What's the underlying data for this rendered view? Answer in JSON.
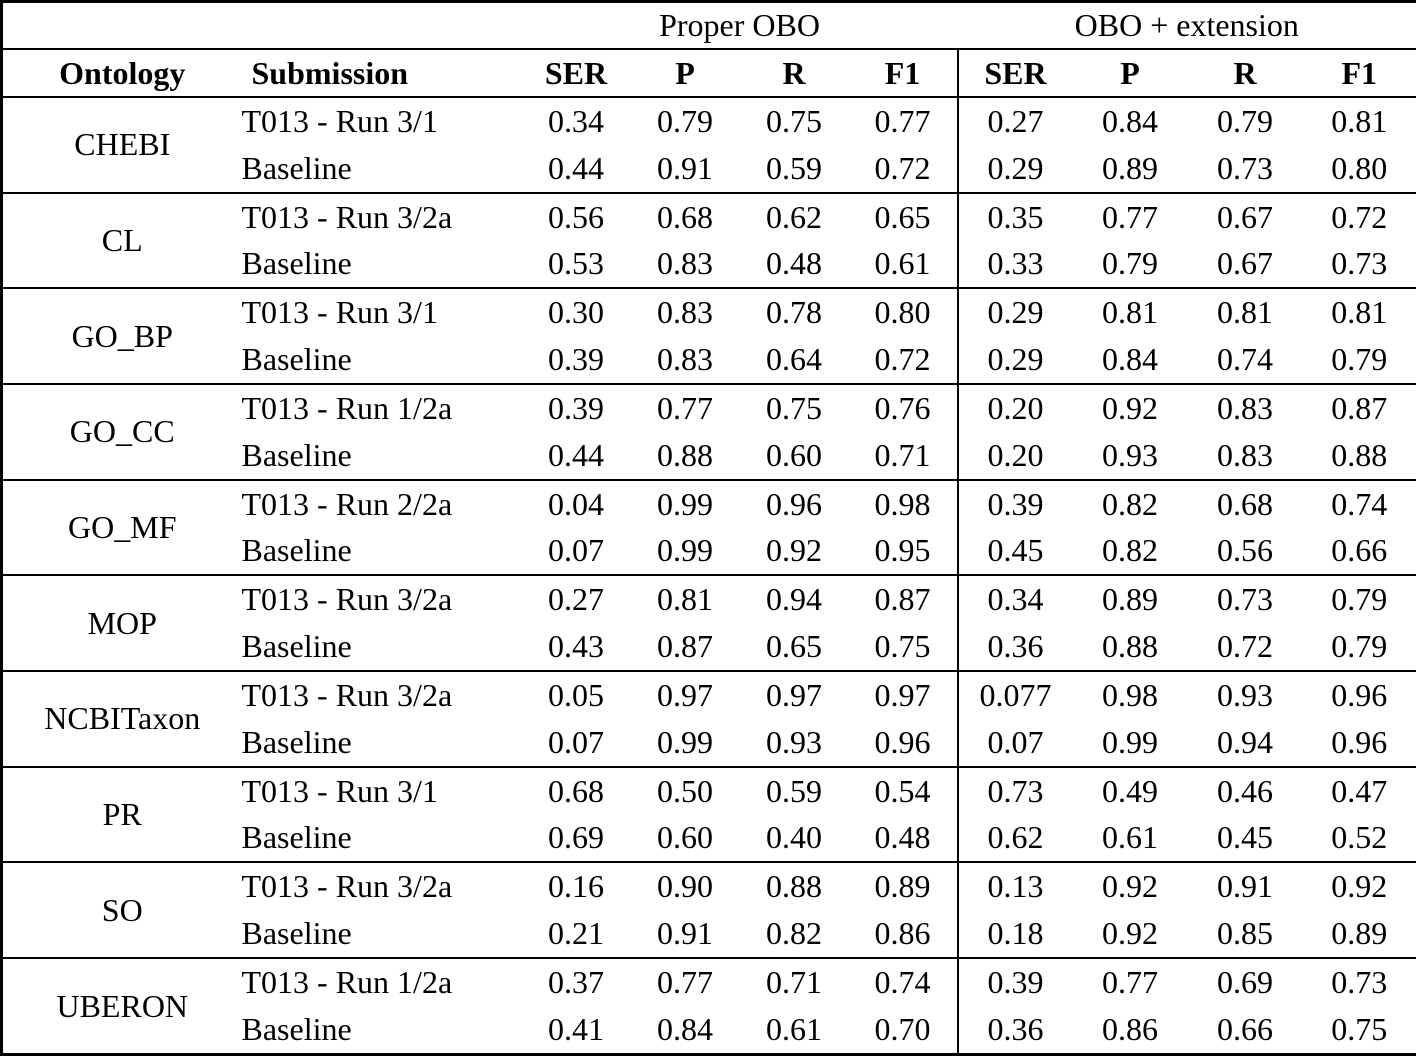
{
  "table": {
    "group_headers": [
      {
        "label": "",
        "span": 2
      },
      {
        "label": "Proper OBO",
        "span": 4
      },
      {
        "label": "OBO + extension",
        "span": 4
      }
    ],
    "column_headers": [
      "Ontology",
      "Submission",
      "SER",
      "P",
      "R",
      "F1",
      "SER",
      "P",
      "R",
      "F1"
    ],
    "groups": [
      {
        "ontology": "CHEBI",
        "rows": [
          {
            "submission": "T013 - Run 3/1",
            "proper_obo": [
              "0.34",
              "0.79",
              "0.75",
              "0.77"
            ],
            "obo_extension": [
              "0.27",
              "0.84",
              "0.79",
              "0.81"
            ]
          },
          {
            "submission": "Baseline",
            "proper_obo": [
              "0.44",
              "0.91",
              "0.59",
              "0.72"
            ],
            "obo_extension": [
              "0.29",
              "0.89",
              "0.73",
              "0.80"
            ]
          }
        ]
      },
      {
        "ontology": "CL",
        "rows": [
          {
            "submission": "T013 - Run 3/2a",
            "proper_obo": [
              "0.56",
              "0.68",
              "0.62",
              "0.65"
            ],
            "obo_extension": [
              "0.35",
              "0.77",
              "0.67",
              "0.72"
            ]
          },
          {
            "submission": "Baseline",
            "proper_obo": [
              "0.53",
              "0.83",
              "0.48",
              "0.61"
            ],
            "obo_extension": [
              "0.33",
              "0.79",
              "0.67",
              "0.73"
            ]
          }
        ]
      },
      {
        "ontology": "GO_BP",
        "rows": [
          {
            "submission": "T013 - Run 3/1",
            "proper_obo": [
              "0.30",
              "0.83",
              "0.78",
              "0.80"
            ],
            "obo_extension": [
              "0.29",
              "0.81",
              "0.81",
              "0.81"
            ]
          },
          {
            "submission": "Baseline",
            "proper_obo": [
              "0.39",
              "0.83",
              "0.64",
              "0.72"
            ],
            "obo_extension": [
              "0.29",
              "0.84",
              "0.74",
              "0.79"
            ]
          }
        ]
      },
      {
        "ontology": "GO_CC",
        "rows": [
          {
            "submission": "T013 - Run 1/2a",
            "proper_obo": [
              "0.39",
              "0.77",
              "0.75",
              "0.76"
            ],
            "obo_extension": [
              "0.20",
              "0.92",
              "0.83",
              "0.87"
            ]
          },
          {
            "submission": "Baseline",
            "proper_obo": [
              "0.44",
              "0.88",
              "0.60",
              "0.71"
            ],
            "obo_extension": [
              "0.20",
              "0.93",
              "0.83",
              "0.88"
            ]
          }
        ]
      },
      {
        "ontology": "GO_MF",
        "rows": [
          {
            "submission": "T013 - Run 2/2a",
            "proper_obo": [
              "0.04",
              "0.99",
              "0.96",
              "0.98"
            ],
            "obo_extension": [
              "0.39",
              "0.82",
              "0.68",
              "0.74"
            ]
          },
          {
            "submission": "Baseline",
            "proper_obo": [
              "0.07",
              "0.99",
              "0.92",
              "0.95"
            ],
            "obo_extension": [
              "0.45",
              "0.82",
              "0.56",
              "0.66"
            ]
          }
        ]
      },
      {
        "ontology": "MOP",
        "rows": [
          {
            "submission": "T013 - Run 3/2a",
            "proper_obo": [
              "0.27",
              "0.81",
              "0.94",
              "0.87"
            ],
            "obo_extension": [
              "0.34",
              "0.89",
              "0.73",
              "0.79"
            ]
          },
          {
            "submission": "Baseline",
            "proper_obo": [
              "0.43",
              "0.87",
              "0.65",
              "0.75"
            ],
            "obo_extension": [
              "0.36",
              "0.88",
              "0.72",
              "0.79"
            ]
          }
        ]
      },
      {
        "ontology": "NCBITaxon",
        "rows": [
          {
            "submission": "T013 - Run 3/2a",
            "proper_obo": [
              "0.05",
              "0.97",
              "0.97",
              "0.97"
            ],
            "obo_extension": [
              "0.077",
              "0.98",
              "0.93",
              "0.96"
            ]
          },
          {
            "submission": "Baseline",
            "proper_obo": [
              "0.07",
              "0.99",
              "0.93",
              "0.96"
            ],
            "obo_extension": [
              "0.07",
              "0.99",
              "0.94",
              "0.96"
            ]
          }
        ]
      },
      {
        "ontology": "PR",
        "rows": [
          {
            "submission": "T013 - Run 3/1",
            "proper_obo": [
              "0.68",
              "0.50",
              "0.59",
              "0.54"
            ],
            "obo_extension": [
              "0.73",
              "0.49",
              "0.46",
              "0.47"
            ]
          },
          {
            "submission": "Baseline",
            "proper_obo": [
              "0.69",
              "0.60",
              "0.40",
              "0.48"
            ],
            "obo_extension": [
              "0.62",
              "0.61",
              "0.45",
              "0.52"
            ]
          }
        ]
      },
      {
        "ontology": "SO",
        "rows": [
          {
            "submission": "T013 - Run 3/2a",
            "proper_obo": [
              "0.16",
              "0.90",
              "0.88",
              "0.89"
            ],
            "obo_extension": [
              "0.13",
              "0.92",
              "0.91",
              "0.92"
            ]
          },
          {
            "submission": "Baseline",
            "proper_obo": [
              "0.21",
              "0.91",
              "0.82",
              "0.86"
            ],
            "obo_extension": [
              "0.18",
              "0.92",
              "0.85",
              "0.89"
            ]
          }
        ]
      },
      {
        "ontology": "UBERON",
        "rows": [
          {
            "submission": "T013 - Run 1/2a",
            "proper_obo": [
              "0.37",
              "0.77",
              "0.71",
              "0.74"
            ],
            "obo_extension": [
              "0.39",
              "0.77",
              "0.69",
              "0.73"
            ]
          },
          {
            "submission": "Baseline",
            "proper_obo": [
              "0.41",
              "0.84",
              "0.61",
              "0.70"
            ],
            "obo_extension": [
              "0.36",
              "0.86",
              "0.66",
              "0.75"
            ]
          }
        ]
      }
    ],
    "colors": {
      "border": "#000000",
      "text": "#000000",
      "background": "#ffffff"
    }
  }
}
